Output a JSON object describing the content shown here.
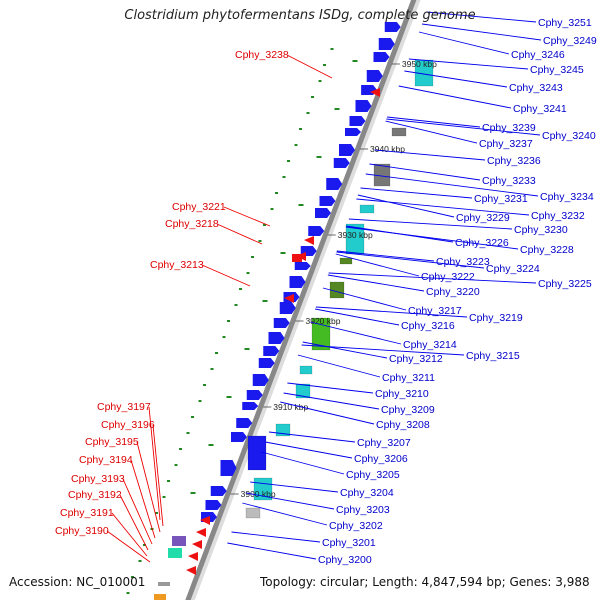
{
  "title": "Clostridium phytofermentans ISDg, complete genome",
  "accession_text": "Accession: NC_010001",
  "topology_text": "Topology: circular; Length: 4,847,594 bp; Genes: 3,988",
  "kbp_ticks": [
    "3950 kbp",
    "3940 kbp",
    "3930 kbp",
    "3920 kbp",
    "3910 kbp",
    "3900 kbp"
  ],
  "right_genes": [
    "Cphy_3251",
    "Cphy_3249",
    "Cphy_3246",
    "Cphy_3245",
    "Cphy_3243",
    "Cphy_3241",
    "Cphy_3239",
    "Cphy_3240",
    "Cphy_3237",
    "Cphy_3236",
    "Cphy_3233",
    "Cphy_3234",
    "Cphy_3231",
    "Cphy_3232",
    "Cphy_3229",
    "Cphy_3230",
    "Cphy_3226",
    "Cphy_3228",
    "Cphy_3223",
    "Cphy_3224",
    "Cphy_3222",
    "Cphy_3225",
    "Cphy_3220",
    "Cphy_3217",
    "Cphy_3219",
    "Cphy_3216",
    "Cphy_3214",
    "Cphy_3215",
    "Cphy_3212",
    "Cphy_3211",
    "Cphy_3210",
    "Cphy_3209",
    "Cphy_3208",
    "Cphy_3207",
    "Cphy_3206",
    "Cphy_3205",
    "Cphy_3204",
    "Cphy_3203",
    "Cphy_3202",
    "Cphy_3201",
    "Cphy_3200"
  ],
  "left_genes": [
    "Cphy_3238",
    "Cphy_3221",
    "Cphy_3218",
    "Cphy_3213",
    "Cphy_3197",
    "Cphy_3196",
    "Cphy_3195",
    "Cphy_3194",
    "Cphy_3193",
    "Cphy_3192",
    "Cphy_3191",
    "Cphy_3190"
  ],
  "colors": {
    "backbone": "#888888",
    "gene_forward": "#1a1aee",
    "gene_reverse": "#ee1111",
    "gene_cyan": "#22cccc",
    "gene_olive": "#558822",
    "gene_green": "#44bb22",
    "gene_gray": "#777777",
    "gene_purple": "#7755bb",
    "label_right": "#0000cc",
    "label_left": "#dd0000",
    "dots": "#228822"
  }
}
